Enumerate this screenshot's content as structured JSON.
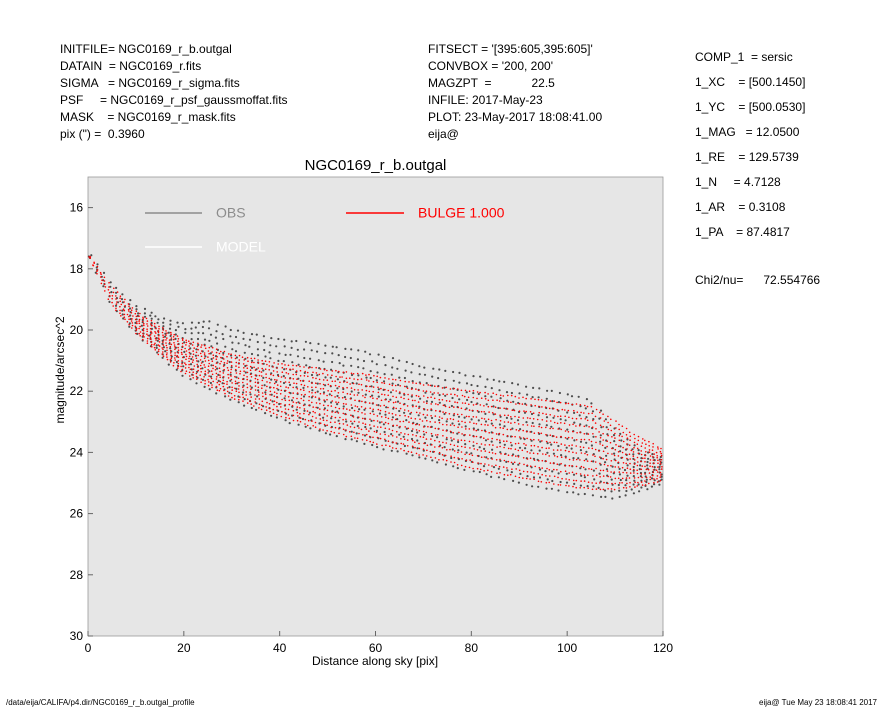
{
  "header_left": [
    "INITFILE= NGC0169_r_b.outgal",
    "DATAIN  = NGC0169_r.fits",
    "SIGMA   = NGC0169_r_sigma.fits",
    "PSF     = NGC0169_r_psf_gaussmoffat.fits",
    "MASK    = NGC0169_r_mask.fits",
    "pix (\") =  0.3960"
  ],
  "header_mid": [
    "FITSECT = '[395:605,395:605]'",
    "CONVBOX = '200, 200'",
    "MAGZPT  =            22.5",
    "INFILE: 2017-May-23",
    "PLOT: 23-May-2017 18:08:41.00",
    "eija@"
  ],
  "header_right": [
    "COMP_1  = sersic",
    "1_XC    = [500.1450]",
    "1_YC    = [500.0530]",
    "1_MAG   = 12.0500",
    "1_RE    = 129.5739",
    "1_N     = 4.7128",
    "1_AR    = 0.3108",
    "1_PA    = 87.4817"
  ],
  "chi2": "Chi2/nu=      72.554766",
  "footer_left": "/data/eija/CALIFA/p4.dir/NGC0169_r_b.outgal_profile",
  "footer_right": "eija@  Tue May 23 18:08:41 2017",
  "colors": {
    "plot_bg": "#e6e6e6",
    "obs": "#4d4d4d",
    "obs_legend": "#8c8c8c",
    "model": "#ffffff",
    "bulge": "#ff0000"
  },
  "chart_data": {
    "type": "scatter",
    "title": "NGC0169_r_b.outgal",
    "xlabel": "Distance along sky [pix]",
    "ylabel": "magnitude/arcsec^2",
    "xlim": [
      0,
      120
    ],
    "ylim": [
      30,
      15
    ],
    "y_inverted": true,
    "xticks": [
      0,
      20,
      40,
      60,
      80,
      100,
      120
    ],
    "yticks": [
      16,
      18,
      20,
      22,
      24,
      26,
      28,
      30
    ],
    "grid": false,
    "legend_placement": "top-left",
    "legend": [
      {
        "label": "OBS",
        "color": "#8c8c8c"
      },
      {
        "label": "MODEL",
        "color": "#ffffff"
      },
      {
        "label": "BULGE  1.000",
        "color": "#ff0000"
      }
    ],
    "series": [
      {
        "name": "OBS",
        "band_upper": {
          "x": [
            0,
            5,
            10,
            15,
            20,
            25,
            30,
            40,
            50,
            60,
            70,
            80,
            90,
            100,
            105,
            110,
            115,
            120
          ],
          "y": [
            17.5,
            18.5,
            19.2,
            19.6,
            19.8,
            19.7,
            20.0,
            20.3,
            20.5,
            20.8,
            21.2,
            21.5,
            21.8,
            22.1,
            22.3,
            23.3,
            23.9,
            24.2
          ]
        },
        "band_lower": {
          "x": [
            0,
            5,
            10,
            15,
            20,
            30,
            40,
            50,
            60,
            70,
            80,
            90,
            100,
            105,
            110,
            115,
            120
          ],
          "y": [
            17.5,
            19.2,
            20.1,
            20.8,
            21.5,
            22.3,
            22.9,
            23.4,
            23.8,
            24.2,
            24.6,
            25.0,
            25.3,
            25.4,
            25.5,
            25.3,
            25.0
          ]
        }
      },
      {
        "name": "BULGE  1.000",
        "band_upper": {
          "x": [
            0,
            5,
            10,
            15,
            20,
            30,
            40,
            50,
            60,
            70,
            80,
            90,
            100,
            105,
            110,
            115,
            120
          ],
          "y": [
            17.5,
            18.6,
            19.4,
            19.9,
            20.3,
            20.8,
            21.1,
            21.3,
            21.5,
            21.8,
            22.0,
            22.2,
            22.4,
            22.5,
            23.0,
            23.5,
            23.9
          ]
        },
        "band_lower": {
          "x": [
            0,
            5,
            10,
            15,
            20,
            30,
            40,
            50,
            60,
            70,
            80,
            90,
            100,
            105,
            110,
            115,
            120
          ],
          "y": [
            17.5,
            19.2,
            20.1,
            20.8,
            21.4,
            22.2,
            22.8,
            23.3,
            23.7,
            24.1,
            24.5,
            24.8,
            25.1,
            25.2,
            25.2,
            25.1,
            24.9
          ]
        }
      }
    ]
  }
}
